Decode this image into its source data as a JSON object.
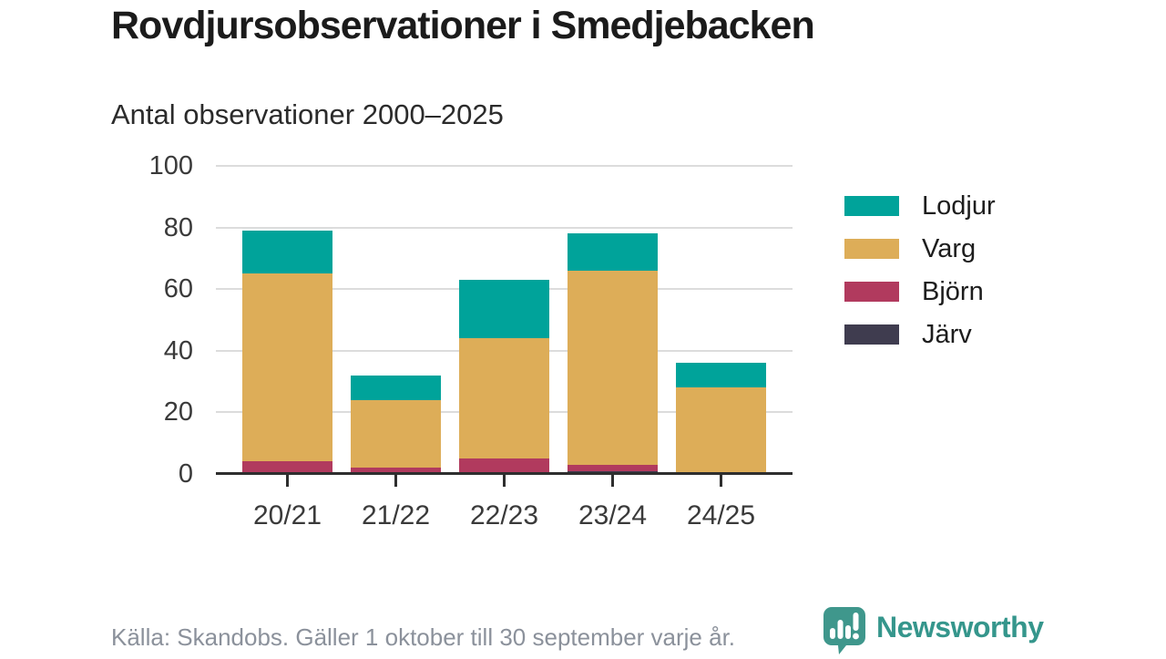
{
  "header": {
    "title": "Rovdjursobservationer i Smedjebacken",
    "subtitle": "Antal observationer 2000–2025"
  },
  "chart_data": {
    "type": "bar",
    "stacked": true,
    "title": "Rovdjursobservationer i Smedjebacken",
    "subtitle": "Antal observationer 2000–2025",
    "categories": [
      "20/21",
      "21/22",
      "22/23",
      "23/24",
      "24/25"
    ],
    "series": [
      {
        "name": "Järv",
        "color": "#3f3c4f",
        "values": [
          0,
          0,
          0,
          1,
          0
        ]
      },
      {
        "name": "Björn",
        "color": "#b13a5e",
        "values": [
          4,
          2,
          5,
          2,
          0
        ]
      },
      {
        "name": "Varg",
        "color": "#ddad58",
        "values": [
          61,
          22,
          39,
          63,
          28
        ]
      },
      {
        "name": "Lodjur",
        "color": "#00a39a",
        "values": [
          14,
          8,
          19,
          12,
          8
        ]
      }
    ],
    "totals": [
      79,
      32,
      63,
      78,
      36
    ],
    "legend_order": [
      "Lodjur",
      "Varg",
      "Björn",
      "Järv"
    ],
    "legend_position": "right",
    "xlabel": "",
    "ylabel": "",
    "ylim": [
      0,
      100
    ],
    "yticks": [
      0,
      20,
      40,
      60,
      80,
      100
    ],
    "grid": true,
    "axis_color": "#2e2e2e",
    "gridline_color": "#dcdcdc"
  },
  "footer": {
    "source": "Källa: Skandobs. Gäller 1 oktober till 30 september varje år.",
    "brand": "Newsworthy",
    "brand_color": "#35968c"
  }
}
